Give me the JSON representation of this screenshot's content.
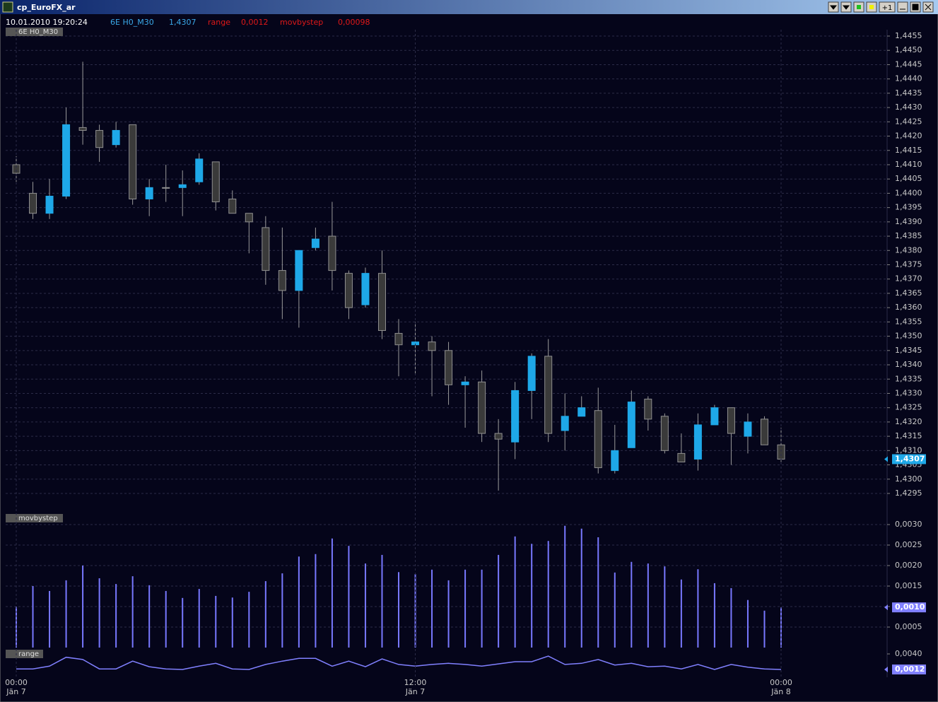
{
  "window_title": "cp_EuroFX_ar",
  "toolbar": {
    "plus_one": "+1"
  },
  "header": {
    "datetime": "10.01.2010 19:20:24",
    "movbystep_value": "0,00098"
  },
  "chart_data": [
    {
      "type": "candlestick",
      "title": "6E H0_M30",
      "categories": [
        "00:00",
        null,
        null,
        null,
        null,
        null,
        null,
        null,
        null,
        null,
        null,
        null,
        null,
        null,
        null,
        null,
        null,
        null,
        null,
        null,
        null,
        null,
        null,
        null,
        "12:00",
        null,
        null,
        null,
        null,
        null,
        null,
        null,
        null,
        null,
        null,
        null,
        null,
        null,
        null,
        null,
        null,
        null,
        null,
        null,
        null,
        null,
        "00:00"
      ],
      "category_dates": [
        "Jän 7",
        null,
        null,
        null,
        null,
        null,
        null,
        null,
        null,
        null,
        null,
        null,
        null,
        null,
        null,
        null,
        null,
        null,
        null,
        null,
        null,
        null,
        null,
        null,
        "Jän 7",
        null,
        null,
        null,
        null,
        null,
        null,
        null,
        null,
        null,
        null,
        null,
        null,
        null,
        null,
        null,
        null,
        null,
        null,
        null,
        null,
        null,
        "Jän 8"
      ],
      "open": [
        1.441,
        1.44,
        1.4393,
        1.4399,
        1.4423,
        1.4422,
        1.4417,
        1.4424,
        1.4398,
        1.4402,
        1.4402,
        1.4404,
        1.4411,
        1.4398,
        1.4393,
        1.4388,
        1.4373,
        1.4366,
        1.4381,
        1.4385,
        1.4372,
        1.4361,
        1.4372,
        1.4351,
        1.4347,
        1.4348,
        1.4345,
        1.4333,
        1.4334,
        1.4316,
        1.4313,
        1.4331,
        1.4343,
        1.4317,
        1.4322,
        1.4324,
        1.4303,
        1.4311,
        1.4328,
        1.4322,
        1.4309,
        1.4307,
        1.4319,
        1.4325,
        1.4315,
        1.4321,
        1.4312
      ],
      "high": [
        1.4413,
        1.4404,
        1.4405,
        1.443,
        1.4446,
        1.4424,
        1.4425,
        1.4424,
        1.4405,
        1.441,
        1.4408,
        1.4414,
        1.4411,
        1.4401,
        1.4393,
        1.4392,
        1.4388,
        1.438,
        1.4388,
        1.4397,
        1.4373,
        1.4374,
        1.438,
        1.4356,
        1.4355,
        1.435,
        1.4348,
        1.4336,
        1.4338,
        1.4321,
        1.4334,
        1.4344,
        1.4349,
        1.433,
        1.4329,
        1.4332,
        1.4319,
        1.4331,
        1.4329,
        1.4323,
        1.4316,
        1.4323,
        1.4326,
        1.4325,
        1.4323,
        1.4322,
        1.4318
      ],
      "low": [
        1.4404,
        1.4391,
        1.4391,
        1.4398,
        1.4417,
        1.4411,
        1.4416,
        1.4396,
        1.4392,
        1.4397,
        1.4392,
        1.4403,
        1.4394,
        1.4393,
        1.4379,
        1.4368,
        1.4356,
        1.4353,
        1.438,
        1.4366,
        1.4356,
        1.436,
        1.4349,
        1.4336,
        1.4337,
        1.4329,
        1.4326,
        1.4318,
        1.4313,
        1.4296,
        1.4307,
        1.4321,
        1.4313,
        1.431,
        1.4322,
        1.4302,
        1.4302,
        1.4311,
        1.4317,
        1.4309,
        1.4306,
        1.4303,
        1.4319,
        1.4305,
        1.4309,
        1.4312,
        1.4306
      ],
      "close": [
        1.4407,
        1.4393,
        1.4399,
        1.4424,
        1.4422,
        1.4416,
        1.4422,
        1.4398,
        1.4402,
        1.4402,
        1.4403,
        1.4412,
        1.4397,
        1.4393,
        1.439,
        1.4373,
        1.4366,
        1.438,
        1.4384,
        1.4373,
        1.436,
        1.4372,
        1.4352,
        1.4347,
        1.4348,
        1.4345,
        1.4333,
        1.4334,
        1.4316,
        1.4314,
        1.4331,
        1.4343,
        1.4316,
        1.4322,
        1.4325,
        1.4304,
        1.431,
        1.4327,
        1.4321,
        1.431,
        1.4306,
        1.4319,
        1.4325,
        1.4316,
        1.432,
        1.4312,
        1.4307
      ],
      "up_color": "#1ea8e8",
      "down_color": "#3a3a3a",
      "ylim": [
        1.4295,
        1.4455
      ],
      "yticks": [
        {
          "value": 1.4295,
          "label": "1,4295"
        },
        {
          "value": 1.43,
          "label": "1,4300"
        },
        {
          "value": 1.4305,
          "label": "1,4305"
        },
        {
          "value": 1.431,
          "label": "1,4310"
        },
        {
          "value": 1.4315,
          "label": "1,4315"
        },
        {
          "value": 1.432,
          "label": "1,4320"
        },
        {
          "value": 1.4325,
          "label": "1,4325"
        },
        {
          "value": 1.433,
          "label": "1,4330"
        },
        {
          "value": 1.4335,
          "label": "1,4335"
        },
        {
          "value": 1.434,
          "label": "1,4340"
        },
        {
          "value": 1.4345,
          "label": "1,4345"
        },
        {
          "value": 1.435,
          "label": "1,4350"
        },
        {
          "value": 1.4355,
          "label": "1,4355"
        },
        {
          "value": 1.436,
          "label": "1,4360"
        },
        {
          "value": 1.4365,
          "label": "1,4365"
        },
        {
          "value": 1.437,
          "label": "1,4370"
        },
        {
          "value": 1.4375,
          "label": "1,4375"
        },
        {
          "value": 1.438,
          "label": "1,4380"
        },
        {
          "value": 1.4385,
          "label": "1,4385"
        },
        {
          "value": 1.439,
          "label": "1,4390"
        },
        {
          "value": 1.4395,
          "label": "1,4395"
        },
        {
          "value": 1.44,
          "label": "1,4400"
        },
        {
          "value": 1.4405,
          "label": "1,4405"
        },
        {
          "value": 1.441,
          "label": "1,4410"
        },
        {
          "value": 1.4415,
          "label": "1,4415"
        },
        {
          "value": 1.442,
          "label": "1,4420"
        },
        {
          "value": 1.4425,
          "label": "1,4425"
        },
        {
          "value": 1.443,
          "label": "1,4430"
        },
        {
          "value": 1.4435,
          "label": "1,4435"
        },
        {
          "value": 1.444,
          "label": "1,4440"
        },
        {
          "value": 1.4445,
          "label": "1,4445"
        },
        {
          "value": 1.445,
          "label": "1,4450"
        },
        {
          "value": 1.4455,
          "label": "1,4455"
        }
      ],
      "current": {
        "value": 1.4307,
        "label": "1,4307"
      },
      "current_color": "#1ea8e8",
      "grid": true
    },
    {
      "type": "bar",
      "title": "movbystep",
      "values": [
        0.001,
        0.0015,
        0.00138,
        0.00164,
        0.002,
        0.00169,
        0.00155,
        0.00174,
        0.00152,
        0.00138,
        0.00121,
        0.00143,
        0.00126,
        0.00122,
        0.00136,
        0.00162,
        0.00181,
        0.00222,
        0.00228,
        0.00266,
        0.00248,
        0.00205,
        0.00226,
        0.00184,
        0.00179,
        0.0019,
        0.00164,
        0.0019,
        0.0019,
        0.00226,
        0.00271,
        0.00253,
        0.0026,
        0.00297,
        0.0029,
        0.00269,
        0.00183,
        0.00209,
        0.00205,
        0.00198,
        0.00166,
        0.00191,
        0.00157,
        0.00145,
        0.00116,
        0.0009,
        0.00098
      ],
      "color": "#7878ff",
      "ylim": [
        0,
        0.003
      ],
      "yticks": [
        {
          "value": 0.0005,
          "label": "0,0005"
        },
        {
          "value": 0.001,
          "label": "0,0010"
        },
        {
          "value": 0.0015,
          "label": "0,0015"
        },
        {
          "value": 0.002,
          "label": "0,0020"
        },
        {
          "value": 0.0025,
          "label": "0,0025"
        },
        {
          "value": 0.003,
          "label": "0,0030"
        }
      ],
      "current": {
        "value": 0.00098,
        "label": "0,0010"
      },
      "current_color": "#8080ff",
      "grid": true
    },
    {
      "type": "line",
      "title": "range",
      "values": [
        0.0013,
        0.0013,
        0.0018,
        0.0034,
        0.003,
        0.0013,
        0.0013,
        0.0027,
        0.0017,
        0.0013,
        0.0012,
        0.0018,
        0.0023,
        0.0013,
        0.0012,
        0.0021,
        0.0027,
        0.0032,
        0.0032,
        0.0018,
        0.0027,
        0.0017,
        0.0031,
        0.0021,
        0.0018,
        0.0021,
        0.0023,
        0.0021,
        0.0018,
        0.0022,
        0.0026,
        0.0026,
        0.0036,
        0.0021,
        0.0023,
        0.003,
        0.002,
        0.0023,
        0.0017,
        0.0018,
        0.0013,
        0.0021,
        0.0012,
        0.0021,
        0.0016,
        0.0013,
        0.0012
      ],
      "color": "#8080ff",
      "ylim": [
        0,
        0.004
      ],
      "yticks": [
        {
          "value": 0.004,
          "label": "0,0040"
        }
      ],
      "current": {
        "value": 0.0012,
        "label": "0,0012"
      },
      "current_color": "#8080ff",
      "grid": false
    }
  ]
}
